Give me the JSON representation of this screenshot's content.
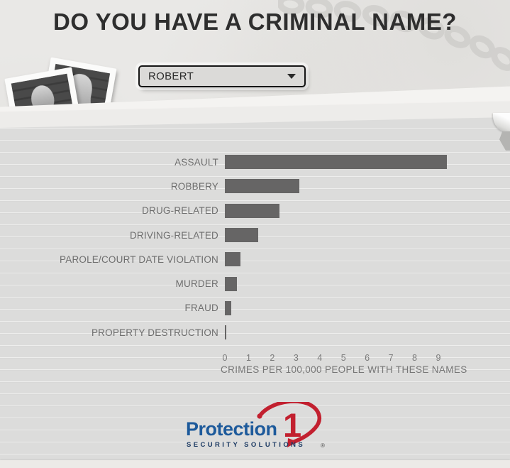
{
  "title": "DO YOU HAVE A CRIMINAL NAME?",
  "name_dropdown": {
    "selected": "ROBERT"
  },
  "chart_data": {
    "type": "bar",
    "orientation": "horizontal",
    "title": "DO YOU HAVE A CRIMINAL NAME?",
    "categories": [
      "ASSAULT",
      "ROBBERY",
      "DRUG-RELATED",
      "DRIVING-RELATED",
      "PAROLE/COURT DATE VIOLATION",
      "MURDER",
      "FRAUD",
      "PROPERTY DESTRUCTION"
    ],
    "values": [
      9.35,
      3.15,
      2.3,
      1.4,
      0.65,
      0.5,
      0.27,
      0.06
    ],
    "xlabel": "CRIMES PER 100,000 PEOPLE WITH THESE NAMES",
    "ylabel": "",
    "xlim": [
      0,
      9
    ],
    "x_ticks": [
      0,
      1,
      2,
      3,
      4,
      5,
      6,
      7,
      8,
      9
    ],
    "grid": false,
    "legend": "none",
    "bar_color": "#666565",
    "label_color": "#6e6e6e"
  },
  "logo": {
    "brand": "Protection",
    "numeral": "1",
    "tagline": "SECURITY SOLUTIONS",
    "registered": "®",
    "brand_color": "#1d5a9b",
    "tagline_color": "#1c3a63",
    "accent_color": "#c2202f"
  },
  "decor": {
    "chain_icon": "chain-icon",
    "mugshots_icon": "mugshot-photos-icon",
    "handcuffs_icon": "handcuffs-icon",
    "fold_icon": "page-fold-icon",
    "handcuff_color": "#c97a45",
    "chain_color": "#c3c2bf"
  }
}
